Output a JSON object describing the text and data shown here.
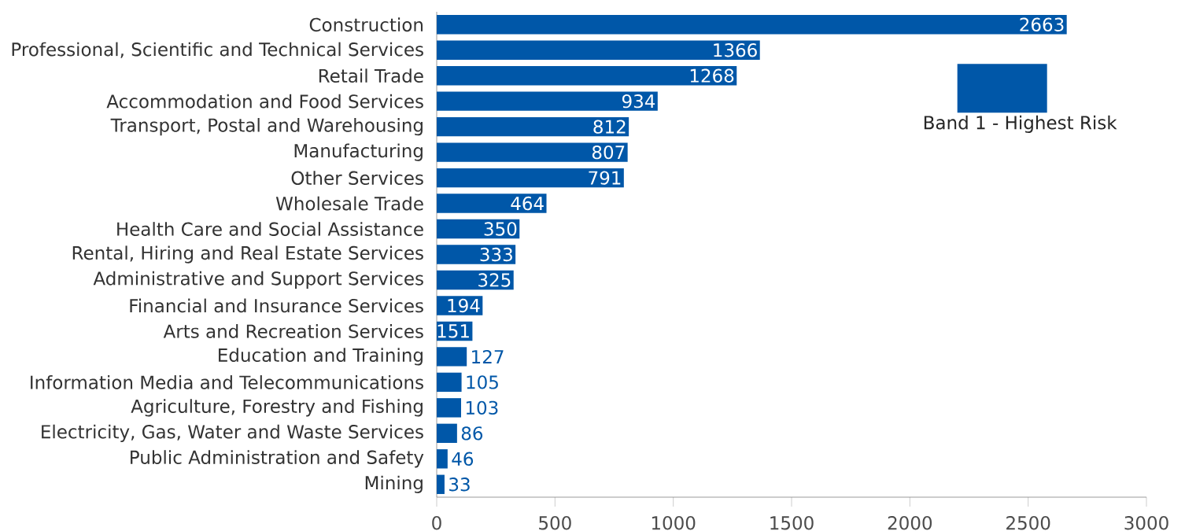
{
  "chart_data": {
    "type": "bar",
    "orientation": "horizontal",
    "categories": [
      "Construction",
      "Professional, Scientific and Technical Services",
      "Retail Trade",
      "Accommodation and Food Services",
      "Transport, Postal and Warehousing",
      "Manufacturing",
      "Other Services",
      "Wholesale Trade",
      "Health Care and Social Assistance",
      "Rental, Hiring and Real Estate Services",
      "Administrative and Support Services",
      "Financial and Insurance Services",
      "Arts and Recreation Services",
      "Education and Training",
      "Information Media and Telecommunications",
      "Agriculture, Forestry and Fishing",
      "Electricity, Gas, Water and Waste Services",
      "Public Administration and Safety",
      "Mining"
    ],
    "series": [
      {
        "name": "Band 1 - Highest Risk",
        "color": "#0057a8",
        "values": [
          2663,
          1366,
          1268,
          934,
          812,
          807,
          791,
          464,
          350,
          333,
          325,
          194,
          151,
          127,
          105,
          103,
          86,
          46,
          33
        ]
      }
    ],
    "xlim": [
      0,
      3000
    ],
    "xticks": [
      0,
      500,
      1000,
      1500,
      2000,
      2500,
      3000
    ],
    "data_labels": true,
    "legend": "top right",
    "grid": false
  }
}
